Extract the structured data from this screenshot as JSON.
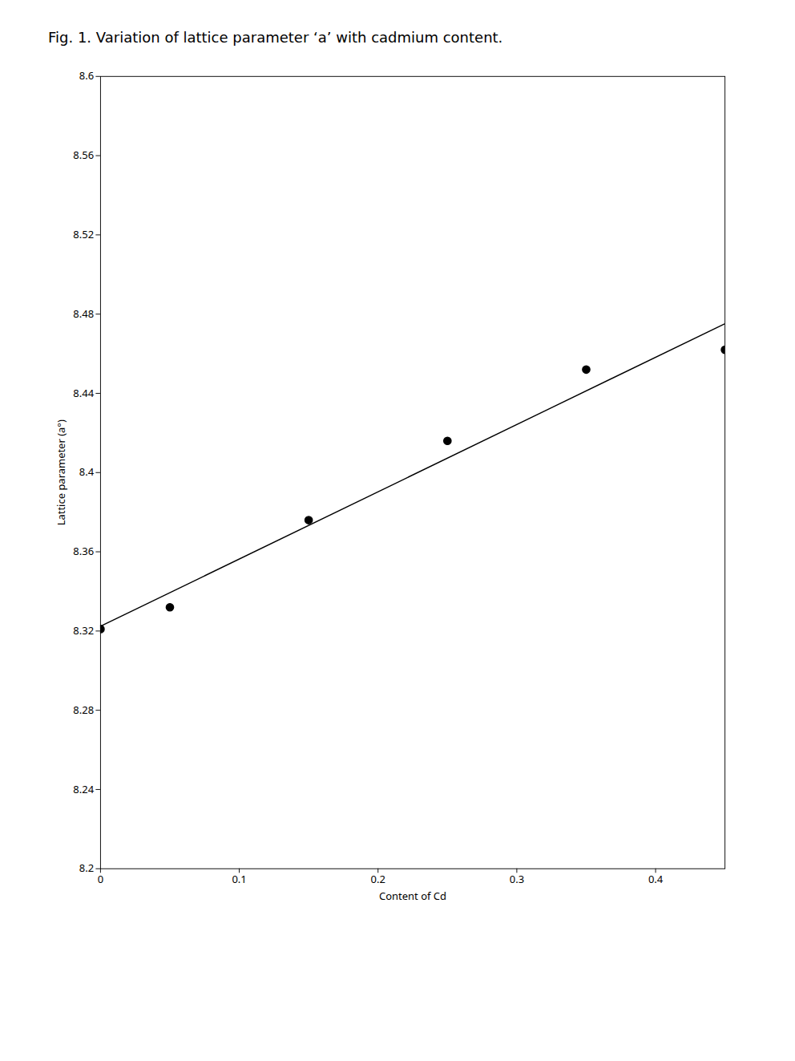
{
  "chart_data": {
    "type": "scatter",
    "title": "Fig. 1.  Variation of lattice parameter ‘a’  with cadmium content.",
    "xlabel": "Content of Cd",
    "ylabel": "Lattice parameter (a°)",
    "xlim": [
      0,
      0.45
    ],
    "ylim": [
      8.2,
      8.6
    ],
    "xticks": [
      0,
      0.1,
      0.2,
      0.3,
      0.4
    ],
    "yticks": [
      8.2,
      8.24,
      8.28,
      8.32,
      8.36,
      8.4,
      8.44,
      8.48,
      8.52,
      8.56,
      8.6
    ],
    "grid": false,
    "series": [
      {
        "type": "scatter",
        "marker": "circle",
        "color": "black",
        "x": [
          0.0,
          0.05,
          0.15,
          0.25,
          0.35,
          0.45
        ],
        "values": [
          8.321,
          8.332,
          8.376,
          8.416,
          8.452,
          8.462
        ]
      },
      {
        "type": "line",
        "line_style": "solid",
        "color": "black",
        "x": [
          0,
          0.45
        ],
        "values": [
          8.3224,
          8.4752
        ]
      }
    ]
  }
}
